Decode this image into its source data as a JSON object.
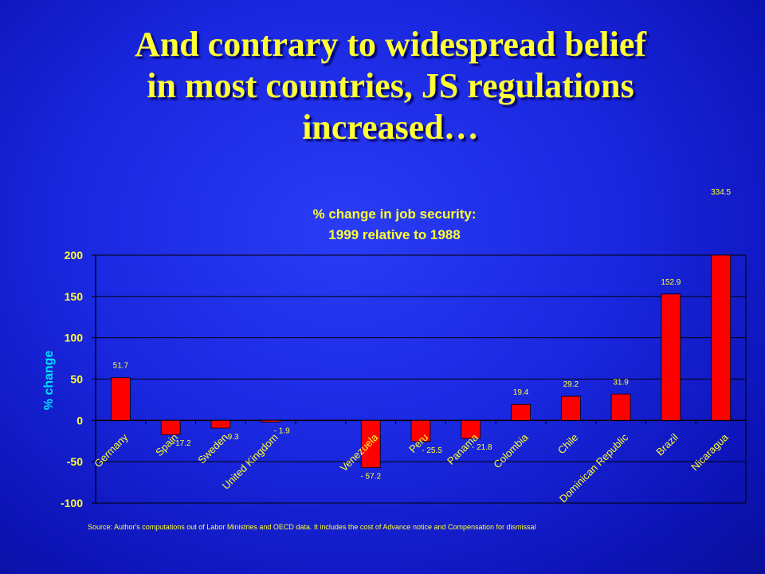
{
  "slide": {
    "title_lines": [
      "And contrary to widespread belief",
      "in most countries, JS regulations",
      "increased…"
    ]
  },
  "chart_data": {
    "type": "bar",
    "title_lines": [
      "% change in job security:",
      "1999 relative to 1988"
    ],
    "ylabel": "% change",
    "xlabel": "",
    "ylim": [
      -100,
      200
    ],
    "yticks": [
      200,
      150,
      100,
      50,
      0,
      -50,
      -100
    ],
    "grid": true,
    "legend": "none",
    "bar_color": "#ff0000",
    "categories": [
      "Germany",
      "Spain",
      "Sweden",
      "United Kingdom",
      "",
      "Venezuela",
      "Peru",
      "Panama",
      "Colombia",
      "Chile",
      "Dominican Republic",
      "Brazil",
      "Nicaragua"
    ],
    "values": [
      51.7,
      -17.2,
      -9.3,
      -1.9,
      null,
      -57.2,
      -25.5,
      -21.8,
      19.4,
      29.2,
      31.9,
      152.9,
      334.5
    ],
    "data_labels": [
      "51.7",
      "-17.2",
      "-9.3",
      "- 1.9",
      "",
      "- 57.2",
      "- 25.5",
      "- 21.8",
      "19.4",
      "29.2",
      "31.9",
      "152.9",
      "334.5"
    ],
    "source_note": "Source: Author's computations out of Labor Ministries and OECD data. It includes the cost of Advance notice and Compensation for dismissal"
  }
}
